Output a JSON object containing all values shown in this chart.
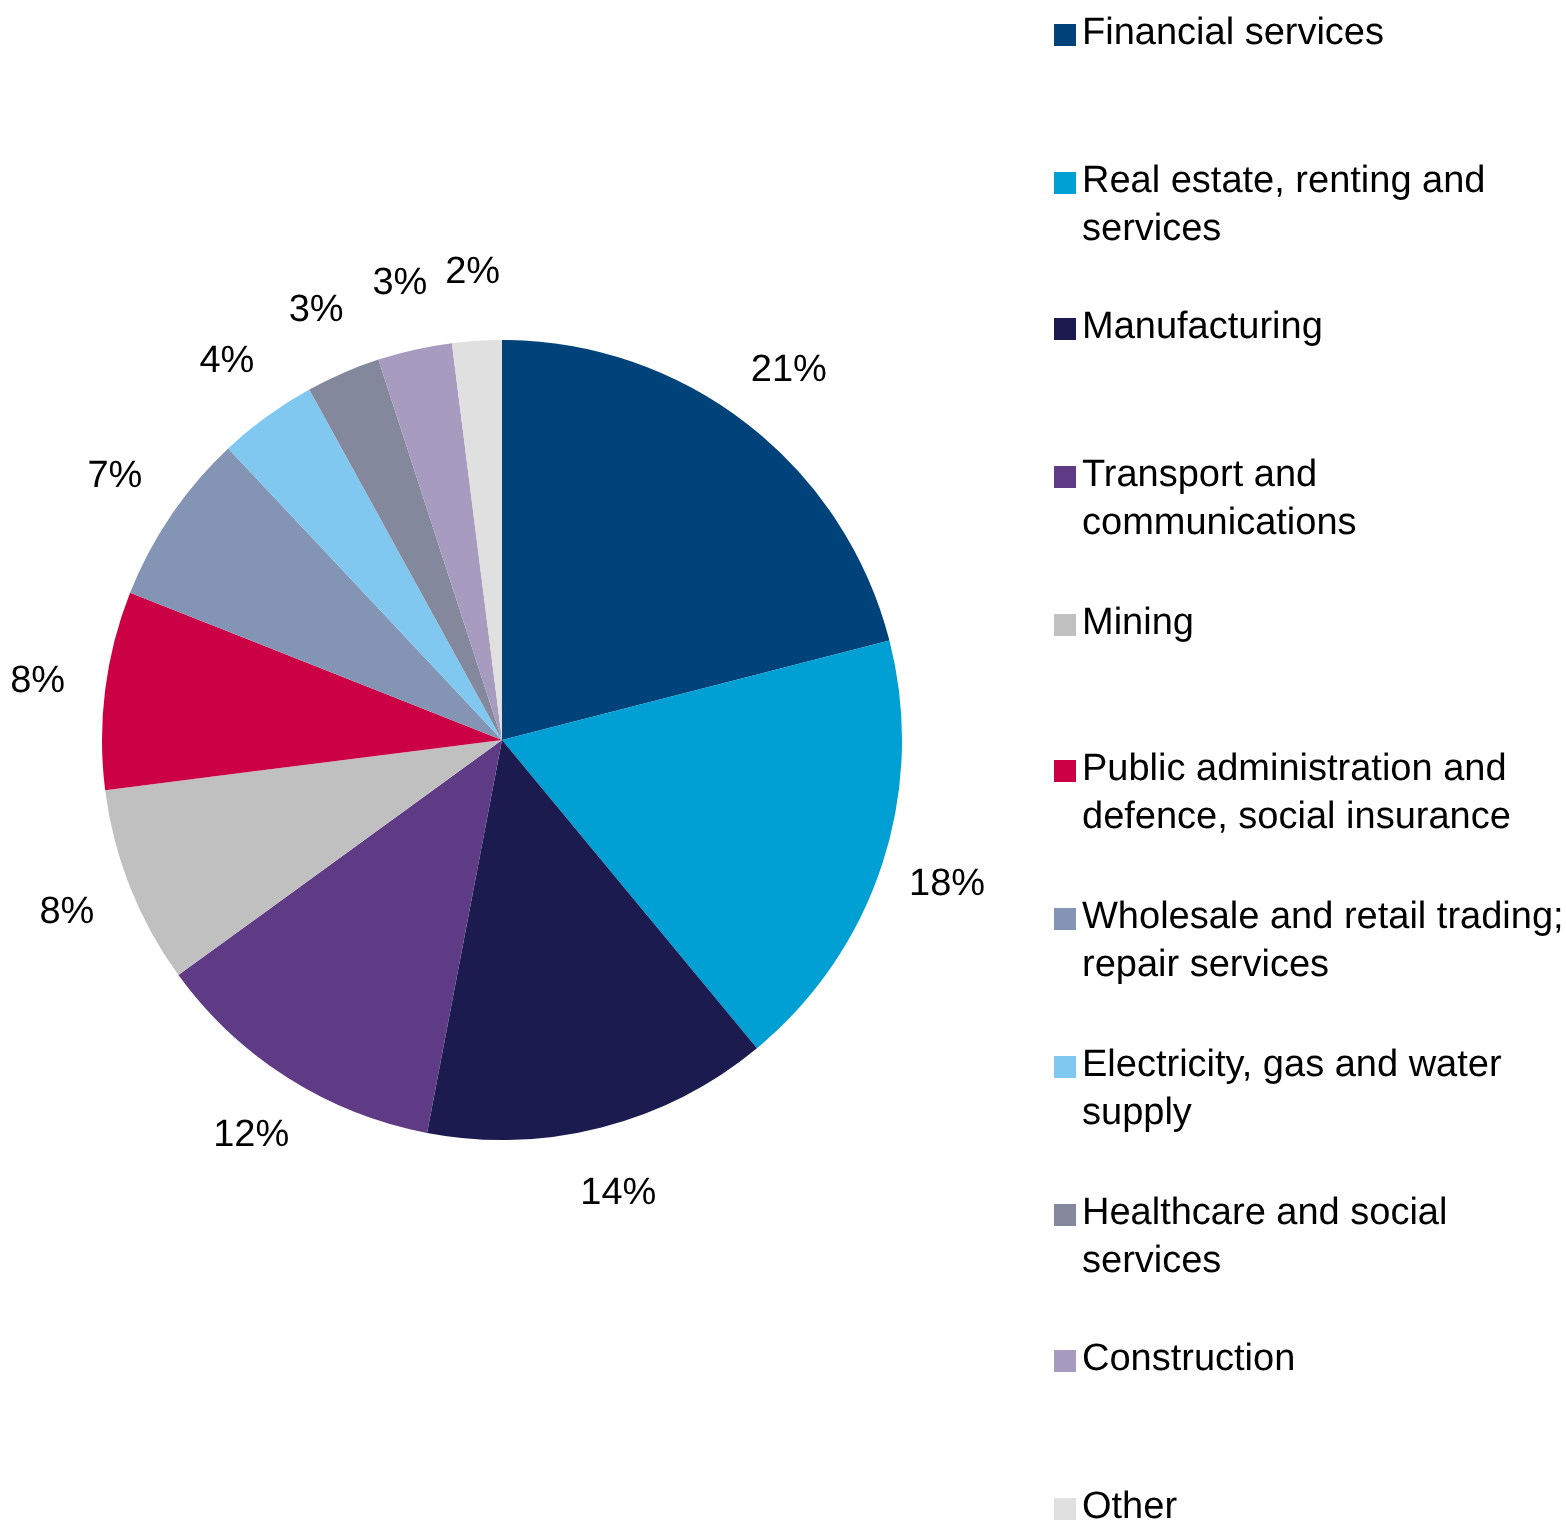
{
  "chart_data": {
    "type": "pie",
    "categories": [
      "Financial services",
      "Real estate, renting and services",
      "Manufacturing",
      "Transport and communications",
      "Mining",
      "Public administration and defence, social insurance",
      "Wholesale and retail trading; repair services",
      "Electricity, gas and water supply",
      "Healthcare and social services",
      "Construction",
      "Other"
    ],
    "values": [
      21,
      18,
      14,
      12,
      8,
      8,
      7,
      4,
      3,
      3,
      2
    ],
    "colors": [
      "#00427a",
      "#009fd4",
      "#1b1b50",
      "#5e3b84",
      "#c0c0c0",
      "#cc0044",
      "#8494b5",
      "#80c8f0",
      "#84889c",
      "#a79bc0",
      "#e0e0e0"
    ],
    "value_labels": [
      "21%",
      "18%",
      "14%",
      "12%",
      "8%",
      "8%",
      "7%",
      "4%",
      "3%",
      "3%",
      "2%"
    ],
    "legend": "right"
  }
}
